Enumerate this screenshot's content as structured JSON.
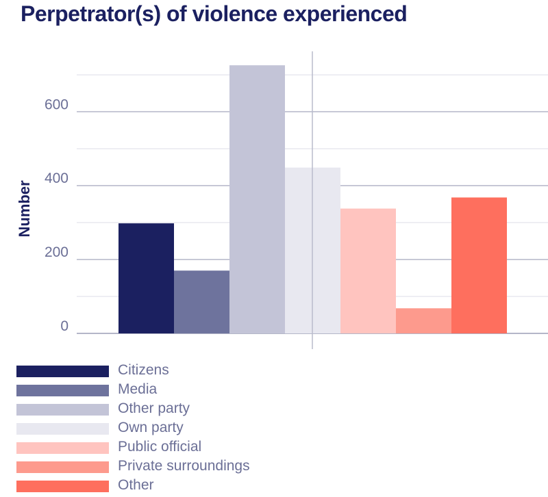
{
  "chart_data": {
    "type": "bar",
    "title": "Perpetrator(s) of violence experienced",
    "xlabel": "",
    "ylabel": "Number",
    "ylim": [
      0,
      740
    ],
    "yticks": [
      0,
      200,
      400,
      600
    ],
    "grid": true,
    "legend_position": "bottom",
    "series": [
      {
        "name": "Citizens",
        "value": 298,
        "color": "#1b2060"
      },
      {
        "name": "Media",
        "value": 170,
        "color": "#6e739d"
      },
      {
        "name": "Other party",
        "value": 726,
        "color": "#c3c4d7"
      },
      {
        "name": "Own party",
        "value": 449,
        "color": "#e8e8f0"
      },
      {
        "name": "Public official",
        "value": 338,
        "color": "#ffc4bf"
      },
      {
        "name": "Private surroundings",
        "value": 68,
        "color": "#fd9a8d"
      },
      {
        "name": "Other",
        "value": 368,
        "color": "#fe6f5e"
      }
    ]
  }
}
